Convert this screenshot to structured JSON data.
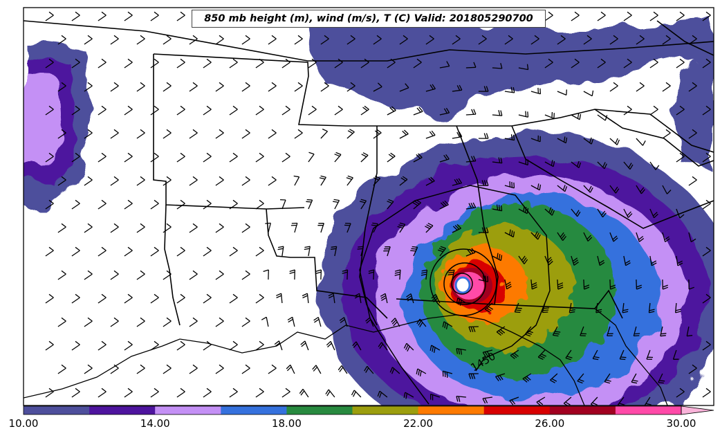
{
  "title": "850 mb height (m), wind (m/s), T (C) Valid: 201805290700",
  "contour_label": "1450",
  "colorbar": {
    "colors": [
      "#4e4f9c",
      "#4e149e",
      "#c490f5",
      "#3571dd",
      "#288a3f",
      "#9c9e0e",
      "#fd7a00",
      "#d80000",
      "#a10020",
      "#ff4aa8"
    ],
    "extend_color": "#f9b3d9",
    "ticks": [
      "10.00",
      "14.00",
      "18.00",
      "22.00",
      "26.00",
      "30.00"
    ]
  }
}
